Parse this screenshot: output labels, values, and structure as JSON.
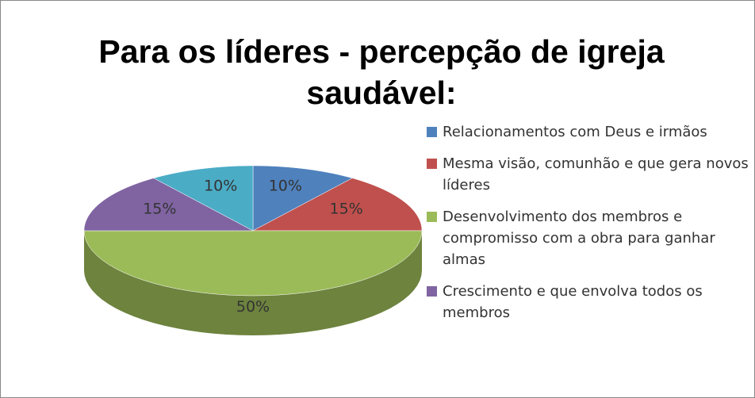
{
  "chart_data": {
    "type": "pie",
    "title": "Para os líderes - percepção de igreja saudável:",
    "categories": [
      "Relacionamentos com Deus e irmãos",
      "Mesma visão, comunhão e que gera novos líderes",
      "Desenvolvimento dos membros e compromisso com a obra para ganhar almas",
      "Crescimento e que envolva todos os membros",
      null
    ],
    "values": [
      10,
      15,
      50,
      15,
      10
    ],
    "value_labels": [
      "10%",
      "15%",
      "50%",
      "15%",
      "10%"
    ],
    "colors": [
      "#4f81bd",
      "#c0504d",
      "#9bbb59",
      "#8064a2",
      "#4bacc6"
    ],
    "legend": "right"
  }
}
